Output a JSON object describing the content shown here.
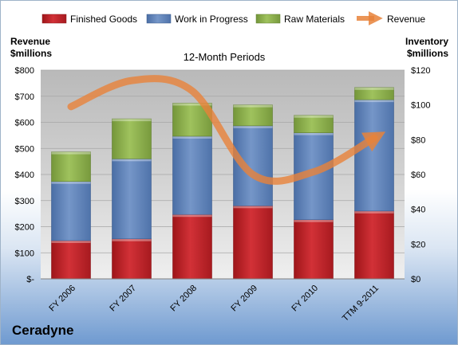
{
  "chart_data": {
    "type": "bar",
    "title": "12-Month Periods",
    "ylabel_left": [
      "Revenue",
      "$millions"
    ],
    "ylabel_right": [
      "Inventory",
      "$millions"
    ],
    "categories": [
      "FY 2006",
      "FY 2007",
      "FY 2008",
      "FY 2009",
      "FY 2010",
      "TTM 9-2011"
    ],
    "stacked": true,
    "series": [
      {
        "name": "Finished Goods",
        "color": "#c0242a",
        "axis": "right",
        "values": [
          22,
          23,
          37,
          42,
          34,
          39
        ]
      },
      {
        "name": "Work in Progress",
        "color": "#5f82b8",
        "axis": "right",
        "values": [
          34,
          46,
          45,
          46,
          50,
          64
        ]
      },
      {
        "name": "Raw Materials",
        "color": "#8db04c",
        "axis": "right",
        "values": [
          17,
          23,
          19,
          12,
          10,
          7
        ]
      }
    ],
    "line_series": {
      "name": "Revenue",
      "color": "#e8823a",
      "axis": "left",
      "values": [
        660,
        760,
        720,
        400,
        410,
        540
      ]
    },
    "left_ticks": [
      "$-",
      "$100",
      "$200",
      "$300",
      "$400",
      "$500",
      "$600",
      "$700",
      "$800"
    ],
    "right_ticks": [
      "$0",
      "$20",
      "$40",
      "$60",
      "$80",
      "$100",
      "$120"
    ],
    "ylim_left": [
      0,
      800
    ],
    "ylim_right": [
      0,
      120
    ],
    "legend_position": "top",
    "grid": true
  },
  "company": "Ceradyne"
}
